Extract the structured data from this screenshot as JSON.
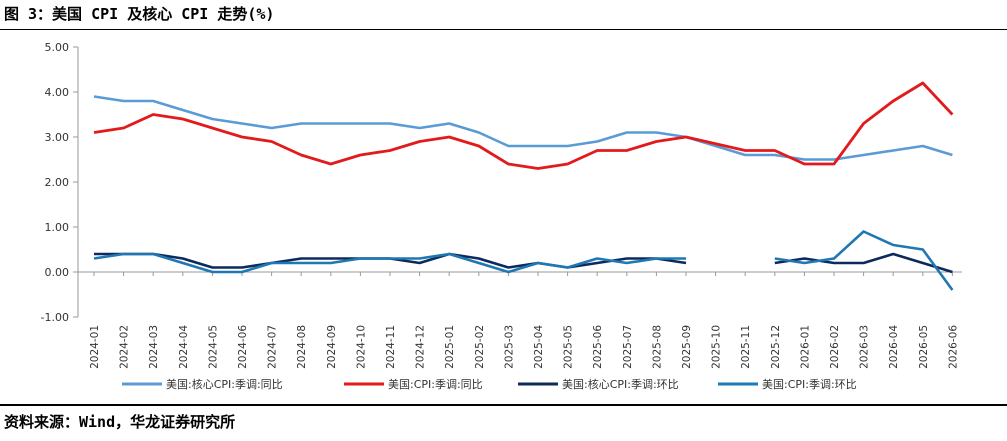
{
  "figure": {
    "title": "图 3：美国 CPI 及核心 CPI 走势(%)",
    "source": "资料来源：Wind，华龙证券研究所"
  },
  "chart_data": {
    "type": "line",
    "title": "",
    "xlabel": "",
    "ylabel": "",
    "ylim": [
      -1.0,
      5.0
    ],
    "yticks": [
      -1.0,
      0.0,
      1.0,
      2.0,
      3.0,
      4.0,
      5.0
    ],
    "ytick_labels": [
      "-1.00",
      "0.00",
      "1.00",
      "2.00",
      "3.00",
      "4.00",
      "5.00"
    ],
    "grid": false,
    "legend": "bottom",
    "categories": [
      "2024-01",
      "2024-02",
      "2024-03",
      "2024-04",
      "2024-05",
      "2024-06",
      "2024-07",
      "2024-08",
      "2024-09",
      "2024-10",
      "2024-11",
      "2024-12",
      "2025-01",
      "2025-02",
      "2025-03",
      "2025-04",
      "2025-05",
      "2025-06",
      "2025-07",
      "2025-08",
      "2025-09",
      "2025-10",
      "2025-11",
      "2025-12",
      "2026-01",
      "2026-02",
      "2026-03",
      "2026-04",
      "2026-05",
      "2026-06"
    ],
    "series": [
      {
        "name": "美国:核心CPI:季调:同比",
        "color": "#5b9bd5",
        "values": [
          3.9,
          3.8,
          3.8,
          3.6,
          3.4,
          3.3,
          3.2,
          3.3,
          3.3,
          3.3,
          3.3,
          3.2,
          3.3,
          3.1,
          2.8,
          2.8,
          2.8,
          2.9,
          3.1,
          3.1,
          3.0,
          2.8,
          2.6,
          2.6,
          2.5,
          2.5,
          2.6,
          2.7,
          2.8,
          2.6
        ]
      },
      {
        "name": "美国:CPI:季调:同比",
        "color": "#e31a1c",
        "values": [
          3.1,
          3.2,
          3.5,
          3.4,
          3.2,
          3.0,
          2.9,
          2.6,
          2.4,
          2.6,
          2.7,
          2.9,
          3.0,
          2.8,
          2.4,
          2.3,
          2.4,
          2.7,
          2.7,
          2.9,
          3.0,
          2.85,
          2.7,
          2.7,
          2.4,
          2.4,
          3.3,
          3.8,
          4.2,
          3.5
        ]
      },
      {
        "name": "美国:核心CPI:季调:环比",
        "color": "#0d2a5c",
        "values": [
          0.4,
          0.4,
          0.4,
          0.3,
          0.1,
          0.1,
          0.2,
          0.3,
          0.3,
          0.3,
          0.3,
          0.2,
          0.4,
          0.3,
          0.1,
          0.2,
          0.1,
          0.2,
          0.3,
          0.3,
          0.2,
          null,
          null,
          0.2,
          0.3,
          0.2,
          0.2,
          0.4,
          0.2,
          0.0
        ]
      },
      {
        "name": "美国:CPI:季调:环比",
        "color": "#1f77b4",
        "values": [
          0.3,
          0.4,
          0.4,
          0.2,
          0.0,
          0.0,
          0.2,
          0.2,
          0.2,
          0.3,
          0.3,
          0.3,
          0.4,
          0.2,
          0.0,
          0.2,
          0.1,
          0.3,
          0.2,
          0.3,
          0.3,
          null,
          null,
          0.3,
          0.2,
          0.3,
          0.9,
          0.6,
          0.5,
          -0.4
        ]
      }
    ]
  }
}
